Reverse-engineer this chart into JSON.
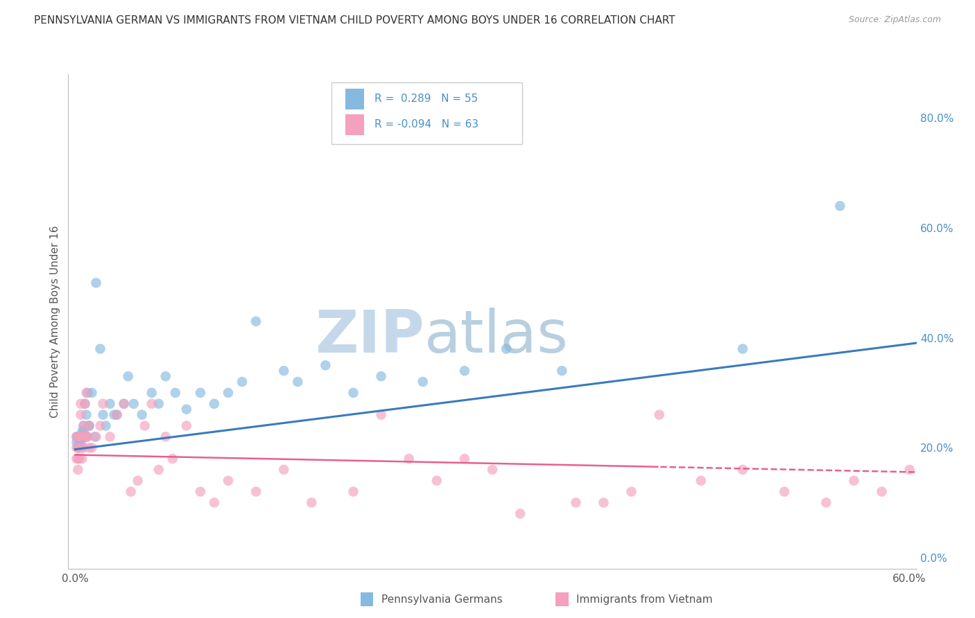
{
  "title": "PENNSYLVANIA GERMAN VS IMMIGRANTS FROM VIETNAM CHILD POVERTY AMONG BOYS UNDER 16 CORRELATION CHART",
  "source": "Source: ZipAtlas.com",
  "ylabel": "Child Poverty Among Boys Under 16",
  "xlim": [
    -0.005,
    0.605
  ],
  "ylim": [
    -0.02,
    0.88
  ],
  "xtick_positions": [
    0.0,
    0.6
  ],
  "xtick_labels": [
    "0.0%",
    "60.0%"
  ],
  "ytick_positions": [
    0.0,
    0.2,
    0.4,
    0.6,
    0.8
  ],
  "ytick_labels": [
    "0.0%",
    "20.0%",
    "40.0%",
    "60.0%",
    "80.0%"
  ],
  "series_blue": {
    "label": "Pennsylvania Germans",
    "R": 0.289,
    "N": 55,
    "color": "#85b9e0",
    "trend_color": "#3a7abf",
    "x": [
      0.001,
      0.001,
      0.002,
      0.002,
      0.003,
      0.003,
      0.003,
      0.004,
      0.004,
      0.005,
      0.005,
      0.005,
      0.006,
      0.006,
      0.007,
      0.007,
      0.008,
      0.008,
      0.009,
      0.01,
      0.01,
      0.012,
      0.014,
      0.015,
      0.018,
      0.02,
      0.022,
      0.025,
      0.028,
      0.03,
      0.035,
      0.038,
      0.042,
      0.048,
      0.055,
      0.06,
      0.065,
      0.072,
      0.08,
      0.09,
      0.1,
      0.11,
      0.12,
      0.13,
      0.15,
      0.16,
      0.18,
      0.2,
      0.22,
      0.25,
      0.28,
      0.31,
      0.35,
      0.48,
      0.55
    ],
    "y": [
      0.22,
      0.21,
      0.22,
      0.2,
      0.22,
      0.21,
      0.2,
      0.22,
      0.21,
      0.23,
      0.22,
      0.22,
      0.24,
      0.23,
      0.22,
      0.28,
      0.26,
      0.22,
      0.3,
      0.24,
      0.24,
      0.3,
      0.22,
      0.5,
      0.38,
      0.26,
      0.24,
      0.28,
      0.26,
      0.26,
      0.28,
      0.33,
      0.28,
      0.26,
      0.3,
      0.28,
      0.33,
      0.3,
      0.27,
      0.3,
      0.28,
      0.3,
      0.32,
      0.43,
      0.34,
      0.32,
      0.35,
      0.3,
      0.33,
      0.32,
      0.34,
      0.38,
      0.34,
      0.38,
      0.64
    ]
  },
  "series_pink": {
    "label": "Immigrants from Vietnam",
    "R": -0.094,
    "N": 63,
    "color": "#f4a0be",
    "trend_color": "#e8608a",
    "trend_solid_end": 0.42,
    "x": [
      0.001,
      0.001,
      0.001,
      0.002,
      0.002,
      0.002,
      0.002,
      0.003,
      0.003,
      0.003,
      0.004,
      0.004,
      0.005,
      0.005,
      0.005,
      0.006,
      0.006,
      0.007,
      0.007,
      0.008,
      0.008,
      0.009,
      0.01,
      0.01,
      0.012,
      0.015,
      0.018,
      0.02,
      0.025,
      0.03,
      0.035,
      0.04,
      0.045,
      0.05,
      0.055,
      0.06,
      0.065,
      0.07,
      0.08,
      0.09,
      0.1,
      0.11,
      0.13,
      0.15,
      0.17,
      0.2,
      0.22,
      0.24,
      0.26,
      0.28,
      0.3,
      0.32,
      0.36,
      0.38,
      0.4,
      0.42,
      0.45,
      0.48,
      0.51,
      0.54,
      0.56,
      0.58,
      0.6
    ],
    "y": [
      0.22,
      0.2,
      0.18,
      0.22,
      0.18,
      0.16,
      0.2,
      0.22,
      0.18,
      0.2,
      0.26,
      0.28,
      0.22,
      0.2,
      0.18,
      0.24,
      0.2,
      0.28,
      0.22,
      0.22,
      0.3,
      0.22,
      0.24,
      0.2,
      0.2,
      0.22,
      0.24,
      0.28,
      0.22,
      0.26,
      0.28,
      0.12,
      0.14,
      0.24,
      0.28,
      0.16,
      0.22,
      0.18,
      0.24,
      0.12,
      0.1,
      0.14,
      0.12,
      0.16,
      0.1,
      0.12,
      0.26,
      0.18,
      0.14,
      0.18,
      0.16,
      0.08,
      0.1,
      0.1,
      0.12,
      0.26,
      0.14,
      0.16,
      0.12,
      0.1,
      0.14,
      0.12,
      0.16
    ]
  },
  "watermark_top": "ZIP",
  "watermark_bottom": "atlas",
  "watermark_color_top": "#c5d8ea",
  "watermark_color_bottom": "#b8cfe0",
  "legend_labels_bottom": [
    "Pennsylvania Germans",
    "Immigrants from Vietnam"
  ],
  "background_color": "#ffffff",
  "grid_color": "#dddddd",
  "title_color": "#333333",
  "axis_label_color": "#555555",
  "right_axis_color": "#4a90c4"
}
